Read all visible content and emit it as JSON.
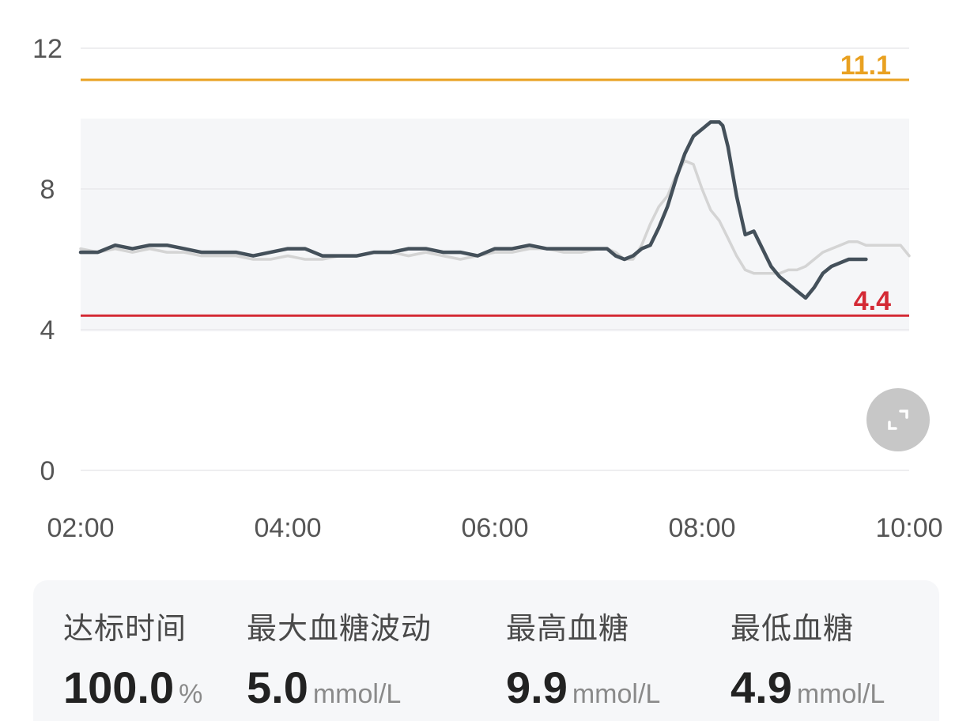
{
  "chart_data": {
    "type": "line",
    "y_ticks": [
      "12",
      "8",
      "4",
      "0"
    ],
    "x_ticks": [
      "02:00",
      "04:00",
      "06:00",
      "08:00",
      "10:00"
    ],
    "ylim": [
      0,
      12
    ],
    "xlim": [
      "02:00",
      "10:00"
    ],
    "target_band": [
      4.4,
      10.0
    ],
    "reference_lines": [
      {
        "value": 11.1,
        "label": "11.1",
        "color": "#e9a121"
      },
      {
        "value": 4.4,
        "label": "4.4",
        "color": "#d42a35"
      }
    ],
    "series": [
      {
        "color": "#44505a",
        "x": [
          "02:00",
          "02:10",
          "02:20",
          "02:30",
          "02:40",
          "02:50",
          "03:00",
          "03:10",
          "03:20",
          "03:30",
          "03:40",
          "03:50",
          "04:00",
          "04:10",
          "04:20",
          "04:30",
          "04:40",
          "04:50",
          "05:00",
          "05:10",
          "05:20",
          "05:30",
          "05:40",
          "05:50",
          "06:00",
          "06:10",
          "06:20",
          "06:30",
          "06:40",
          "06:50",
          "07:00",
          "07:05",
          "07:10",
          "07:15",
          "07:20",
          "07:25",
          "07:30",
          "07:35",
          "07:40",
          "07:45",
          "07:50",
          "07:55",
          "08:00",
          "08:05",
          "08:10",
          "08:12",
          "08:15",
          "08:20",
          "08:25",
          "08:30",
          "08:35",
          "08:40",
          "08:45",
          "08:50",
          "08:55",
          "09:00",
          "09:05",
          "09:10",
          "09:15",
          "09:20",
          "09:25",
          "09:30",
          "09:35"
        ],
        "values": [
          6.2,
          6.2,
          6.4,
          6.3,
          6.4,
          6.4,
          6.3,
          6.2,
          6.2,
          6.2,
          6.1,
          6.2,
          6.3,
          6.3,
          6.1,
          6.1,
          6.1,
          6.2,
          6.2,
          6.3,
          6.3,
          6.2,
          6.2,
          6.1,
          6.3,
          6.3,
          6.4,
          6.3,
          6.3,
          6.3,
          6.3,
          6.3,
          6.1,
          6.0,
          6.1,
          6.3,
          6.4,
          6.9,
          7.5,
          8.3,
          9.0,
          9.5,
          9.7,
          9.9,
          9.9,
          9.8,
          9.2,
          7.8,
          6.7,
          6.8,
          6.3,
          5.8,
          5.5,
          5.3,
          5.1,
          4.9,
          5.2,
          5.6,
          5.8,
          5.9,
          6.0,
          6.0,
          6.0
        ]
      },
      {
        "color": "#d4d4d4",
        "x": [
          "02:00",
          "02:10",
          "02:20",
          "02:30",
          "02:40",
          "02:50",
          "03:00",
          "03:10",
          "03:20",
          "03:30",
          "03:40",
          "03:50",
          "04:00",
          "04:10",
          "04:20",
          "04:30",
          "04:40",
          "04:50",
          "05:00",
          "05:10",
          "05:20",
          "05:30",
          "05:40",
          "05:50",
          "06:00",
          "06:10",
          "06:20",
          "06:30",
          "06:40",
          "06:50",
          "07:00",
          "07:05",
          "07:10",
          "07:15",
          "07:20",
          "07:25",
          "07:30",
          "07:35",
          "07:40",
          "07:45",
          "07:50",
          "07:55",
          "08:00",
          "08:05",
          "08:10",
          "08:15",
          "08:20",
          "08:25",
          "08:30",
          "08:35",
          "08:40",
          "08:45",
          "08:50",
          "08:55",
          "09:00",
          "09:05",
          "09:10",
          "09:15",
          "09:20",
          "09:25",
          "09:30",
          "09:35",
          "09:40",
          "09:45",
          "09:50",
          "09:55",
          "10:00"
        ],
        "values": [
          6.3,
          6.2,
          6.3,
          6.2,
          6.3,
          6.2,
          6.2,
          6.1,
          6.1,
          6.1,
          6.0,
          6.0,
          6.1,
          6.0,
          6.0,
          6.1,
          6.1,
          6.2,
          6.2,
          6.1,
          6.2,
          6.1,
          6.0,
          6.1,
          6.2,
          6.2,
          6.3,
          6.3,
          6.2,
          6.2,
          6.3,
          6.3,
          6.2,
          6.0,
          6.0,
          6.4,
          7.0,
          7.5,
          7.8,
          8.4,
          8.8,
          8.7,
          8.0,
          7.4,
          7.1,
          6.6,
          6.1,
          5.7,
          5.6,
          5.6,
          5.6,
          5.6,
          5.7,
          5.7,
          5.8,
          6.0,
          6.2,
          6.3,
          6.4,
          6.5,
          6.5,
          6.4,
          6.4,
          6.4,
          6.4,
          6.4,
          6.1
        ]
      }
    ]
  },
  "stats": [
    {
      "label": "达标时间",
      "value": "100.0",
      "unit": "%"
    },
    {
      "label": "最大血糖波动",
      "value": "5.0",
      "unit": "mmol/L"
    },
    {
      "label": "最高血糖",
      "value": "9.9",
      "unit": "mmol/L"
    },
    {
      "label": "最低血糖",
      "value": "4.9",
      "unit": "mmol/L"
    }
  ],
  "icons": {
    "expand": "expand-icon"
  }
}
